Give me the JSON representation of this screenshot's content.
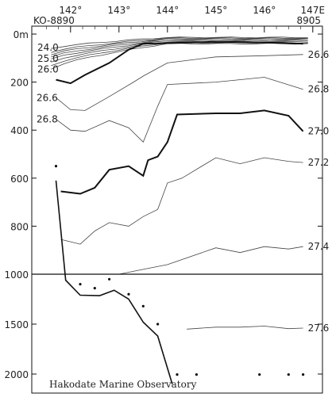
{
  "chart_data": {
    "type": "contour",
    "station_left": "KO-8890",
    "station_right": "8905",
    "source": "Hakodate Marine Observatory",
    "x_axis": {
      "ticks": [
        {
          "value": 142,
          "label": "142°"
        },
        {
          "value": 143,
          "label": "143°"
        },
        {
          "value": 144,
          "label": "144°"
        },
        {
          "value": 145,
          "label": "145°"
        },
        {
          "value": 146,
          "label": "146°"
        },
        {
          "value": 147,
          "label": "147E"
        }
      ],
      "range": [
        141.2,
        147.2
      ]
    },
    "y_axis_upper": {
      "range": [
        0,
        1000
      ],
      "ticks": [
        {
          "value": 0,
          "label": "0m"
        },
        {
          "value": 200,
          "label": "200"
        },
        {
          "value": 400,
          "label": "400"
        },
        {
          "value": 600,
          "label": "600"
        },
        {
          "value": 800,
          "label": "800"
        },
        {
          "value": 1000,
          "label": "1000"
        }
      ]
    },
    "y_axis_lower": {
      "range": [
        1000,
        2000
      ],
      "ticks": [
        {
          "value": 1500,
          "label": "1500"
        },
        {
          "value": 2000,
          "label": "2000"
        }
      ]
    },
    "surface_labels": [
      "24.0",
      "25.0",
      "26.0"
    ],
    "isopycnals": [
      {
        "label": "26.6",
        "label_side": "both",
        "thick": false,
        "points": [
          [
            141.7,
            265
          ],
          [
            142.0,
            315
          ],
          [
            142.3,
            318
          ],
          [
            142.8,
            260
          ],
          [
            143.3,
            200
          ],
          [
            143.5,
            175
          ],
          [
            144.0,
            120
          ],
          [
            145.0,
            95
          ],
          [
            146.0,
            90
          ],
          [
            146.8,
            85
          ]
        ]
      },
      {
        "label": "26.8",
        "label_side": "both",
        "thick": false,
        "points": [
          [
            141.7,
            355
          ],
          [
            142.0,
            400
          ],
          [
            142.3,
            405
          ],
          [
            142.8,
            360
          ],
          [
            143.2,
            390
          ],
          [
            143.5,
            450
          ],
          [
            143.8,
            300
          ],
          [
            144.0,
            210
          ],
          [
            145.0,
            200
          ],
          [
            146.0,
            180
          ],
          [
            146.8,
            230
          ]
        ]
      },
      {
        "label": "27.0",
        "label_side": "right",
        "thick": true,
        "points": [
          [
            141.8,
            655
          ],
          [
            142.2,
            665
          ],
          [
            142.5,
            640
          ],
          [
            142.8,
            565
          ],
          [
            143.2,
            550
          ],
          [
            143.5,
            590
          ],
          [
            143.6,
            525
          ],
          [
            143.8,
            510
          ],
          [
            144.0,
            450
          ],
          [
            144.2,
            335
          ],
          [
            145.0,
            330
          ],
          [
            145.5,
            330
          ],
          [
            146.0,
            318
          ],
          [
            146.5,
            340
          ],
          [
            146.8,
            405
          ]
        ]
      },
      {
        "label": "27.2",
        "label_side": "right",
        "thick": false,
        "points": [
          [
            141.8,
            855
          ],
          [
            142.2,
            875
          ],
          [
            142.5,
            820
          ],
          [
            142.8,
            785
          ],
          [
            143.2,
            800
          ],
          [
            143.5,
            760
          ],
          [
            143.8,
            730
          ],
          [
            144.0,
            620
          ],
          [
            144.3,
            600
          ],
          [
            145.0,
            515
          ],
          [
            145.5,
            540
          ],
          [
            146.0,
            515
          ],
          [
            146.5,
            530
          ],
          [
            146.8,
            535
          ]
        ]
      },
      {
        "label": "27.4",
        "label_side": "right",
        "thick": false,
        "points": [
          [
            143.0,
            1000
          ],
          [
            143.5,
            980
          ],
          [
            144.0,
            960
          ],
          [
            145.0,
            890
          ],
          [
            145.5,
            910
          ],
          [
            146.0,
            885
          ],
          [
            146.5,
            895
          ],
          [
            146.8,
            885
          ]
        ]
      },
      {
        "label": "27.6",
        "label_side": "right",
        "thick": false,
        "points": [
          [
            144.4,
            1550
          ],
          [
            145.0,
            1530
          ],
          [
            145.5,
            1530
          ],
          [
            146.0,
            1520
          ],
          [
            146.5,
            1545
          ],
          [
            146.8,
            1540
          ]
        ]
      }
    ],
    "near_surface_lines": {
      "count": 8,
      "left_depths": [
        60,
        75,
        85,
        95,
        105,
        118,
        132,
        145
      ],
      "right_depths": [
        14,
        17,
        20,
        24,
        28,
        32,
        36,
        40
      ]
    },
    "upper_level_line": {
      "label": "26.0",
      "points": [
        [
          141.7,
          190
        ],
        [
          142.0,
          205
        ],
        [
          142.3,
          170
        ],
        [
          142.8,
          120
        ],
        [
          143.2,
          65
        ],
        [
          143.5,
          40
        ],
        [
          144.0,
          38
        ],
        [
          145.0,
          32
        ],
        [
          146.0,
          35
        ],
        [
          146.8,
          40
        ]
      ]
    },
    "bottom_profile": [
      [
        141.7,
        610
      ],
      [
        141.9,
        1060
      ],
      [
        142.2,
        1210
      ],
      [
        142.6,
        1215
      ],
      [
        142.9,
        1160
      ],
      [
        143.2,
        1250
      ],
      [
        143.5,
        1480
      ],
      [
        143.8,
        1620
      ],
      [
        144.1,
        2100
      ]
    ],
    "sample_dots": [
      [
        141.7,
        550
      ],
      [
        142.2,
        1100
      ],
      [
        142.5,
        1140
      ],
      [
        142.8,
        1050
      ],
      [
        143.2,
        1200
      ],
      [
        143.5,
        1320
      ],
      [
        143.8,
        1500
      ],
      [
        144.2,
        2005
      ],
      [
        144.6,
        2005
      ],
      [
        145.9,
        2005
      ],
      [
        146.5,
        2005
      ],
      [
        146.8,
        2005
      ]
    ]
  }
}
